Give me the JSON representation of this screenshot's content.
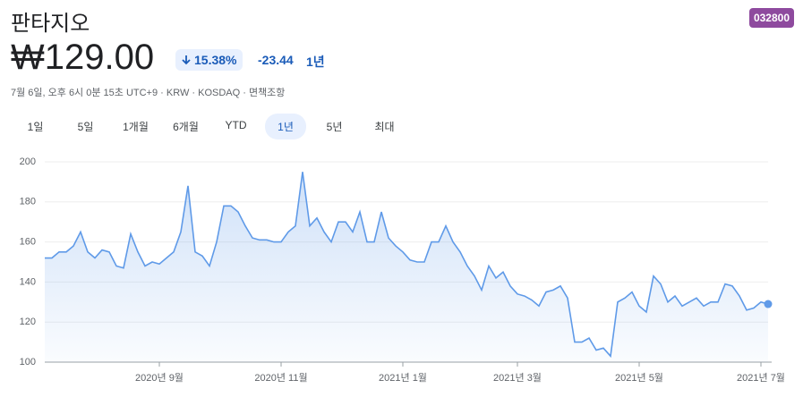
{
  "header": {
    "title": "판타지오",
    "ticker": "032800",
    "price": "₩129.00",
    "change_percent": "15.38%",
    "change_amount": "-23.44",
    "period": "1년",
    "info": "7월 6일, 오후 6시 0분 15초 UTC+9 · KRW · KOSDAQ · 면책조항"
  },
  "tabs": {
    "items": [
      "1일",
      "5일",
      "1개월",
      "6개월",
      "YTD",
      "1년",
      "5년",
      "최대"
    ],
    "selected": 5
  },
  "chart_data": {
    "type": "line",
    "color": "#5f9ae8",
    "categories": [
      null,
      null,
      null,
      null,
      null,
      null,
      null,
      null,
      null,
      null,
      null,
      null,
      null,
      null,
      null,
      null,
      "2020년 9월",
      null,
      null,
      null,
      null,
      null,
      null,
      null,
      null,
      null,
      null,
      null,
      null,
      null,
      null,
      null,
      null,
      "2020년 11월",
      null,
      null,
      null,
      null,
      null,
      null,
      null,
      null,
      null,
      null,
      null,
      null,
      null,
      null,
      null,
      null,
      "2021년 1월",
      null,
      null,
      null,
      null,
      null,
      null,
      null,
      null,
      null,
      null,
      null,
      null,
      null,
      null,
      null,
      "2021년 3월",
      null,
      null,
      null,
      null,
      null,
      null,
      null,
      null,
      null,
      null,
      null,
      null,
      null,
      null,
      null,
      null,
      "2021년 5월",
      null,
      null,
      null,
      null,
      null,
      null,
      null,
      null,
      null,
      null,
      null,
      null,
      null,
      null,
      null,
      null,
      "2021년 7월",
      null
    ],
    "values": [
      152,
      152,
      155,
      155,
      158,
      165,
      155,
      152,
      156,
      155,
      148,
      147,
      164,
      155,
      148,
      150,
      149,
      152,
      155,
      165,
      188,
      155,
      153,
      148,
      160,
      178,
      178,
      175,
      168,
      162,
      161,
      161,
      160,
      160,
      165,
      168,
      195,
      168,
      172,
      165,
      160,
      170,
      170,
      165,
      175,
      160,
      160,
      175,
      162,
      158,
      155,
      151,
      150,
      150,
      160,
      160,
      168,
      160,
      155,
      148,
      143,
      136,
      148,
      142,
      145,
      138,
      134,
      133,
      131,
      128,
      135,
      136,
      138,
      132,
      110,
      110,
      112,
      106,
      107,
      103,
      130,
      132,
      135,
      128,
      125,
      143,
      139,
      130,
      133,
      128,
      130,
      132,
      128,
      130,
      130,
      139,
      138,
      133,
      126,
      127,
      130,
      129
    ],
    "ylim": [
      100,
      200
    ],
    "yticks": [
      100,
      120,
      140,
      160,
      180,
      200
    ],
    "grid": true
  }
}
